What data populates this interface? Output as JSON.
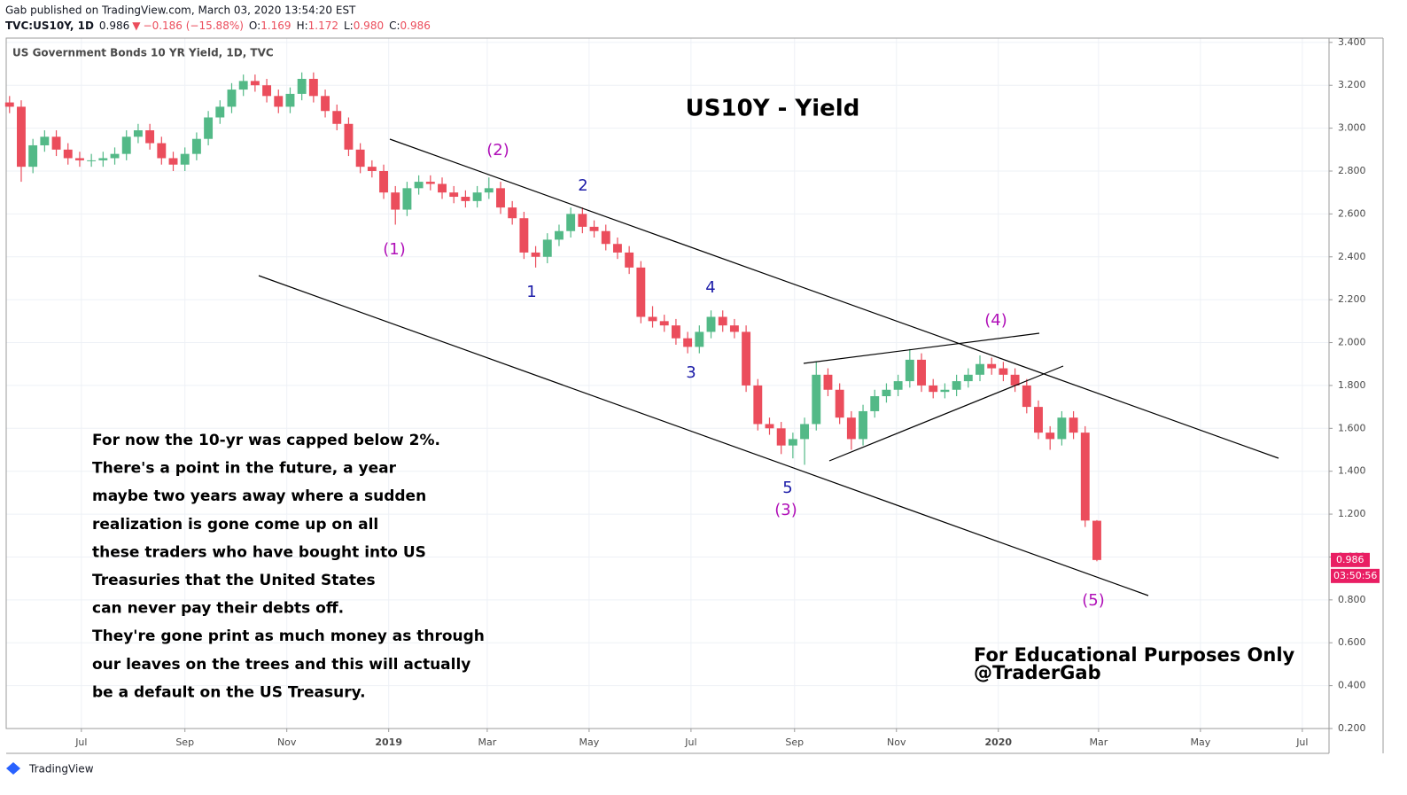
{
  "header": {
    "publisher": "Gab published on TradingView.com, March 03, 2020 13:54:20 EST",
    "symbol": "TVC:US10Y, 1D",
    "last": "0.986",
    "change": "−0.186 (−15.88%)",
    "ohlc": [
      {
        "label": "O:",
        "value": "1.169"
      },
      {
        "label": "H:",
        "value": "1.172"
      },
      {
        "label": "L:",
        "value": "0.980"
      },
      {
        "label": "C:",
        "value": "0.986"
      }
    ]
  },
  "chart_data": {
    "type": "candlestick",
    "title": "US Government Bonds 10 YR Yield, 1D, TVC",
    "headline": "US10Y - Yield",
    "x": [
      2,
      9,
      16,
      23,
      30,
      37,
      44,
      51,
      58,
      65,
      72,
      79,
      86,
      93,
      100,
      107,
      114,
      121,
      128,
      135,
      142,
      149,
      156,
      163,
      170,
      177,
      184,
      191,
      198,
      205,
      212,
      219,
      226,
      233,
      240,
      247,
      254,
      261,
      268,
      275,
      282,
      289,
      296,
      303,
      310,
      317,
      324,
      331,
      338,
      345,
      352,
      359,
      366,
      373,
      380,
      387,
      394,
      401,
      408,
      415,
      422,
      429,
      436,
      443,
      450,
      457,
      464,
      471,
      478,
      485,
      492,
      499,
      506,
      513,
      520,
      527,
      534,
      541,
      548,
      555,
      562,
      569,
      576,
      583,
      590,
      597,
      604,
      611,
      618,
      625,
      632,
      639,
      646,
      653
    ],
    "open": [
      3.12,
      3.1,
      2.82,
      2.92,
      2.96,
      2.9,
      2.86,
      2.85,
      2.85,
      2.86,
      2.88,
      2.96,
      2.99,
      2.93,
      2.86,
      2.83,
      2.88,
      2.95,
      3.05,
      3.1,
      3.18,
      3.22,
      3.2,
      3.15,
      3.1,
      3.16,
      3.23,
      3.15,
      3.08,
      3.02,
      2.9,
      2.82,
      2.8,
      2.7,
      2.62,
      2.72,
      2.75,
      2.74,
      2.7,
      2.68,
      2.66,
      2.7,
      2.72,
      2.63,
      2.58,
      2.42,
      2.4,
      2.48,
      2.52,
      2.6,
      2.54,
      2.52,
      2.46,
      2.42,
      2.35,
      2.12,
      2.1,
      2.08,
      2.02,
      1.98,
      2.05,
      2.12,
      2.08,
      2.05,
      1.8,
      1.62,
      1.6,
      1.52,
      1.55,
      1.62,
      1.85,
      1.78,
      1.65,
      1.55,
      1.68,
      1.75,
      1.78,
      1.82,
      1.92,
      1.8,
      1.77,
      1.78,
      1.82,
      1.85,
      1.9,
      1.88,
      1.85,
      1.8,
      1.7,
      1.58,
      1.55,
      1.65,
      1.58,
      1.169
    ],
    "high": [
      3.15,
      3.13,
      2.95,
      2.99,
      2.99,
      2.93,
      2.89,
      2.88,
      2.89,
      2.91,
      2.99,
      3.02,
      3.02,
      2.96,
      2.89,
      2.91,
      2.98,
      3.08,
      3.13,
      3.21,
      3.25,
      3.25,
      3.23,
      3.18,
      3.19,
      3.26,
      3.26,
      3.18,
      3.11,
      3.05,
      2.93,
      2.85,
      2.83,
      2.73,
      2.75,
      2.78,
      2.78,
      2.77,
      2.73,
      2.71,
      2.73,
      2.77,
      2.75,
      2.66,
      2.61,
      2.45,
      2.51,
      2.55,
      2.63,
      2.63,
      2.57,
      2.55,
      2.49,
      2.45,
      2.38,
      2.17,
      2.13,
      2.11,
      2.05,
      2.08,
      2.15,
      2.15,
      2.11,
      2.08,
      1.83,
      1.65,
      1.63,
      1.58,
      1.65,
      1.91,
      1.88,
      1.81,
      1.68,
      1.71,
      1.78,
      1.81,
      1.85,
      1.97,
      1.95,
      1.83,
      1.81,
      1.85,
      1.88,
      1.94,
      1.93,
      1.91,
      1.88,
      1.83,
      1.73,
      1.61,
      1.68,
      1.68,
      1.61,
      1.172
    ],
    "low": [
      3.07,
      2.75,
      2.79,
      2.89,
      2.87,
      2.83,
      2.82,
      2.82,
      2.82,
      2.83,
      2.85,
      2.93,
      2.9,
      2.83,
      2.8,
      2.8,
      2.85,
      2.92,
      3.02,
      3.07,
      3.15,
      3.17,
      3.12,
      3.07,
      3.07,
      3.13,
      3.12,
      3.05,
      2.99,
      2.87,
      2.79,
      2.77,
      2.67,
      2.55,
      2.59,
      2.69,
      2.71,
      2.67,
      2.65,
      2.63,
      2.63,
      2.67,
      2.6,
      2.55,
      2.39,
      2.35,
      2.37,
      2.45,
      2.49,
      2.51,
      2.49,
      2.43,
      2.39,
      2.32,
      2.09,
      2.07,
      2.05,
      1.99,
      1.95,
      1.95,
      2.02,
      2.05,
      2.02,
      1.77,
      1.59,
      1.57,
      1.48,
      1.46,
      1.43,
      1.59,
      1.75,
      1.62,
      1.5,
      1.52,
      1.65,
      1.72,
      1.75,
      1.79,
      1.77,
      1.74,
      1.74,
      1.75,
      1.79,
      1.82,
      1.85,
      1.82,
      1.77,
      1.67,
      1.55,
      1.5,
      1.52,
      1.55,
      1.14,
      0.98
    ],
    "close": [
      3.1,
      2.82,
      2.92,
      2.96,
      2.9,
      2.86,
      2.85,
      2.85,
      2.86,
      2.88,
      2.96,
      2.99,
      2.93,
      2.86,
      2.83,
      2.88,
      2.95,
      3.05,
      3.1,
      3.18,
      3.22,
      3.2,
      3.15,
      3.1,
      3.16,
      3.23,
      3.15,
      3.08,
      3.02,
      2.9,
      2.82,
      2.8,
      2.7,
      2.62,
      2.72,
      2.75,
      2.74,
      2.7,
      2.68,
      2.66,
      2.7,
      2.72,
      2.63,
      2.58,
      2.42,
      2.4,
      2.48,
      2.52,
      2.6,
      2.54,
      2.52,
      2.46,
      2.42,
      2.35,
      2.12,
      2.1,
      2.08,
      2.02,
      1.98,
      2.05,
      2.12,
      2.08,
      2.05,
      1.8,
      1.62,
      1.6,
      1.52,
      1.55,
      1.62,
      1.85,
      1.78,
      1.65,
      1.55,
      1.68,
      1.75,
      1.78,
      1.82,
      1.92,
      1.8,
      1.77,
      1.78,
      1.82,
      1.85,
      1.9,
      1.88,
      1.85,
      1.8,
      1.7,
      1.58,
      1.55,
      1.65,
      1.58,
      1.17,
      0.986
    ],
    "up_color": "#53b987",
    "down_color": "#eb4d5c",
    "xlim": [
      0,
      792
    ],
    "xticks": [
      {
        "value": 45,
        "label": "Jul"
      },
      {
        "value": 107,
        "label": "Sep"
      },
      {
        "value": 168,
        "label": "Nov"
      },
      {
        "value": 229,
        "label": "2019"
      },
      {
        "value": 288,
        "label": "Mar"
      },
      {
        "value": 349,
        "label": "May"
      },
      {
        "value": 410,
        "label": "Jul"
      },
      {
        "value": 472,
        "label": "Sep"
      },
      {
        "value": 533,
        "label": "Nov"
      },
      {
        "value": 594,
        "label": "2020"
      },
      {
        "value": 654,
        "label": "Mar"
      },
      {
        "value": 715,
        "label": "May"
      },
      {
        "value": 776,
        "label": "Jul"
      }
    ],
    "ylim": [
      0.2,
      3.42
    ],
    "yticks": [
      {
        "value": 0.2,
        "label": "0.200"
      },
      {
        "value": 0.4,
        "label": "0.400"
      },
      {
        "value": 0.6,
        "label": "0.600"
      },
      {
        "value": 0.8,
        "label": "0.800"
      },
      {
        "value": 1.0,
        "label": "1.000"
      },
      {
        "value": 1.2,
        "label": "1.200"
      },
      {
        "value": 1.4,
        "label": "1.400"
      },
      {
        "value": 1.6,
        "label": "1.600"
      },
      {
        "value": 1.8,
        "label": "1.800"
      },
      {
        "value": 2.0,
        "label": "2.000"
      },
      {
        "value": 2.2,
        "label": "2.200"
      },
      {
        "value": 2.4,
        "label": "2.400"
      },
      {
        "value": 2.6,
        "label": "2.600"
      },
      {
        "value": 2.8,
        "label": "2.800"
      },
      {
        "value": 3.0,
        "label": "3.000"
      },
      {
        "value": 3.2,
        "label": "3.200"
      },
      {
        "value": 3.4,
        "label": "3.400"
      }
    ],
    "grid": true,
    "last_price_countdown": "03:50:56",
    "annotations": [
      {
        "text": "(1)",
        "color": "#b010b8"
      },
      {
        "text": "(2)",
        "color": "#b010b8"
      },
      {
        "text": "2",
        "color": "#1c1ca8"
      },
      {
        "text": "1",
        "color": "#1c1ca8"
      },
      {
        "text": "4",
        "color": "#1c1ca8"
      },
      {
        "text": "3",
        "color": "#1c1ca8"
      },
      {
        "text": "5",
        "color": "#1c1ca8"
      },
      {
        "text": "(3)",
        "color": "#b010b8"
      },
      {
        "text": "(4)",
        "color": "#b010b8"
      },
      {
        "text": "(5)",
        "color": "#b010b8"
      }
    ],
    "note_lines": [
      "For now the 10-yr was capped below 2%.",
      "There's a point in the future, a year",
      "maybe two years away where a sudden",
      "realization is gone come up on all",
      "these traders who have bought into US",
      "Treasuries that the United States",
      "can never pay their debts off.",
      "They're gone print as much money as through",
      "our leaves on the trees and this will actually",
      "be a default on the US Treasury."
    ],
    "footer_lines": [
      "For Educational Purposes Only",
      "@TraderGab"
    ]
  },
  "branding": "TradingView"
}
